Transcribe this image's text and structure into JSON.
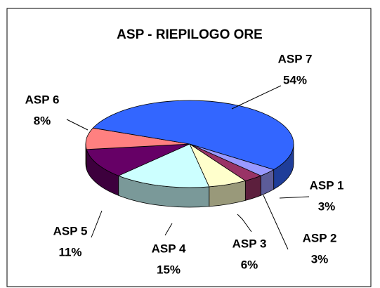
{
  "chart_data": {
    "type": "pie3d",
    "title": "ASP - RIEPILOGO ORE",
    "categories": [
      "ASP 1",
      "ASP 2",
      "ASP 3",
      "ASP 4",
      "ASP 5",
      "ASP 6",
      "ASP 7"
    ],
    "values": [
      3,
      3,
      6,
      15,
      11,
      8,
      54
    ],
    "value_labels": [
      "3%",
      "3%",
      "6%",
      "15%",
      "11%",
      "8%",
      "54%"
    ],
    "colors": [
      "#9999ff",
      "#993366",
      "#ffffcc",
      "#ccffff",
      "#660066",
      "#ff8080",
      "#3366ff"
    ]
  }
}
